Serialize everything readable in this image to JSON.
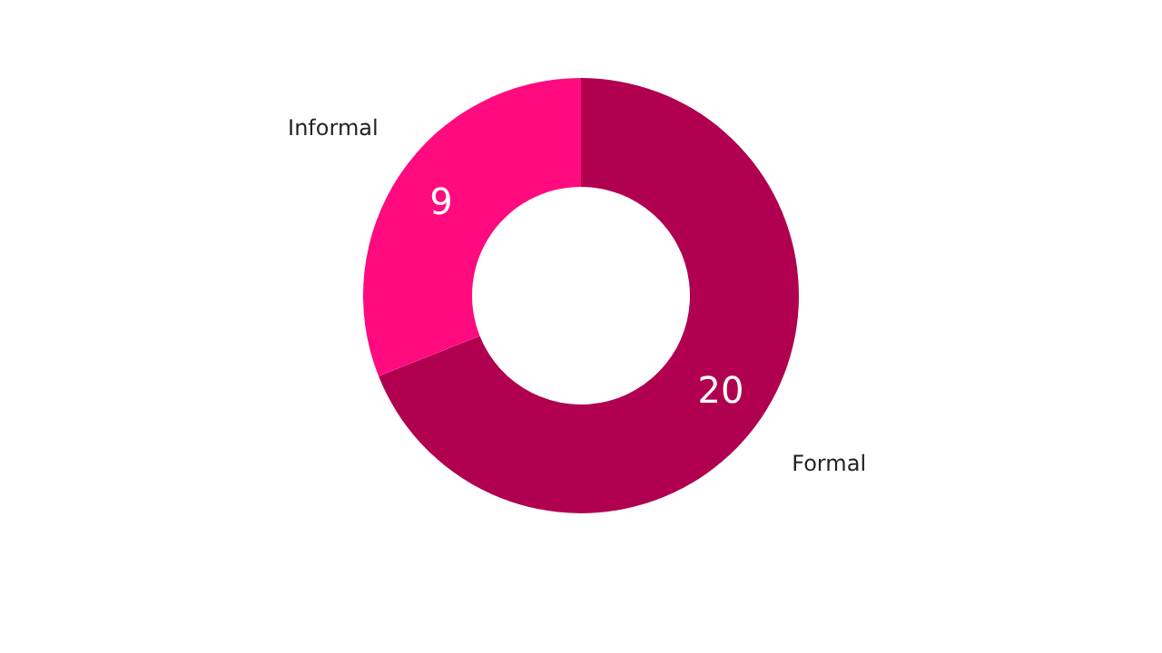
{
  "chart_data": {
    "type": "donut",
    "categories": [
      "Formal",
      "Informal"
    ],
    "values": [
      20,
      9
    ],
    "colors": [
      "#b0004f",
      "#ff0a7f"
    ],
    "data_labels": true,
    "legend": false
  }
}
